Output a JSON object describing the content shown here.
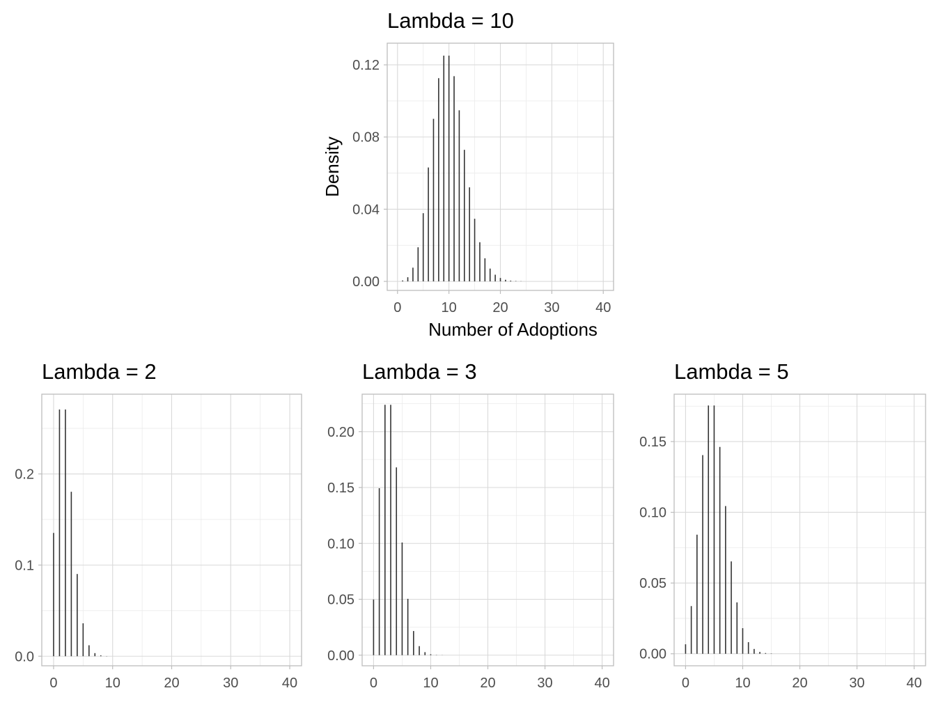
{
  "chart_data": [
    {
      "type": "bar",
      "title": "Lambda = 10",
      "xlabel": "Number of Adoptions",
      "ylabel": "Density",
      "lambda": 10,
      "xlim": [
        -2,
        42
      ],
      "ylim": [
        -0.005,
        0.132
      ],
      "xticks": [
        0,
        10,
        20,
        30,
        40
      ],
      "yticks": [
        0,
        0.04,
        0.08,
        0.12
      ],
      "ytick_labels": [
        "0.00",
        "0.04",
        "0.08",
        "0.12"
      ],
      "grid": true,
      "x": [
        0,
        1,
        2,
        3,
        4,
        5,
        6,
        7,
        8,
        9,
        10,
        11,
        12,
        13,
        14,
        15,
        16,
        17,
        18,
        19,
        20,
        21,
        22,
        23,
        24,
        25,
        26,
        27,
        28,
        29,
        30,
        31,
        32,
        33,
        34,
        35,
        36,
        37,
        38,
        39,
        40
      ],
      "values": [
        0.0,
        0.0005,
        0.0023,
        0.0076,
        0.0189,
        0.0378,
        0.0631,
        0.0901,
        0.1126,
        0.1251,
        0.1251,
        0.1137,
        0.0948,
        0.0729,
        0.0521,
        0.0347,
        0.0217,
        0.0128,
        0.0071,
        0.0037,
        0.0019,
        0.0009,
        0.0004,
        0.0002,
        0.0001,
        0,
        0,
        0,
        0,
        0,
        0,
        0,
        0,
        0,
        0,
        0,
        0,
        0,
        0,
        0,
        0
      ]
    },
    {
      "type": "bar",
      "title": "Lambda = 2",
      "xlabel": "",
      "ylabel": "",
      "lambda": 2,
      "xlim": [
        -2,
        42
      ],
      "ylim": [
        -0.0105,
        0.2875
      ],
      "xticks": [
        0,
        10,
        20,
        30,
        40
      ],
      "yticks": [
        0,
        0.1,
        0.2
      ],
      "ytick_labels": [
        "0.0",
        "0.1",
        "0.2"
      ],
      "grid": true,
      "x": [
        0,
        1,
        2,
        3,
        4,
        5,
        6,
        7,
        8,
        9,
        10,
        11,
        12,
        13,
        14,
        15,
        16,
        17,
        18,
        19,
        20,
        21,
        22,
        23,
        24,
        25,
        26,
        27,
        28,
        29,
        30,
        31,
        32,
        33,
        34,
        35,
        36,
        37,
        38,
        39,
        40
      ],
      "values": [
        0.1353,
        0.2707,
        0.2707,
        0.1804,
        0.0902,
        0.0361,
        0.012,
        0.0034,
        0.0009,
        0.0002,
        0,
        0,
        0,
        0,
        0,
        0,
        0,
        0,
        0,
        0,
        0,
        0,
        0,
        0,
        0,
        0,
        0,
        0,
        0,
        0,
        0,
        0,
        0,
        0,
        0,
        0,
        0,
        0,
        0,
        0,
        0
      ]
    },
    {
      "type": "bar",
      "title": "Lambda = 3",
      "xlabel": "",
      "ylabel": "",
      "lambda": 3,
      "xlim": [
        -2,
        42
      ],
      "ylim": [
        -0.0095,
        0.2335
      ],
      "xticks": [
        0,
        10,
        20,
        30,
        40
      ],
      "yticks": [
        0,
        0.05,
        0.1,
        0.15,
        0.2
      ],
      "ytick_labels": [
        "0.00",
        "0.05",
        "0.10",
        "0.15",
        "0.20"
      ],
      "grid": true,
      "x": [
        0,
        1,
        2,
        3,
        4,
        5,
        6,
        7,
        8,
        9,
        10,
        11,
        12,
        13,
        14,
        15,
        16,
        17,
        18,
        19,
        20,
        21,
        22,
        23,
        24,
        25,
        26,
        27,
        28,
        29,
        30,
        31,
        32,
        33,
        34,
        35,
        36,
        37,
        38,
        39,
        40
      ],
      "values": [
        0.0498,
        0.1494,
        0.224,
        0.224,
        0.168,
        0.1008,
        0.0504,
        0.0216,
        0.0081,
        0.0027,
        0.0008,
        0.0002,
        0.0001,
        0,
        0,
        0,
        0,
        0,
        0,
        0,
        0,
        0,
        0,
        0,
        0,
        0,
        0,
        0,
        0,
        0,
        0,
        0,
        0,
        0,
        0,
        0,
        0,
        0,
        0,
        0,
        0
      ]
    },
    {
      "type": "bar",
      "title": "Lambda = 5",
      "xlabel": "",
      "ylabel": "",
      "lambda": 5,
      "xlim": [
        -2,
        42
      ],
      "ylim": [
        -0.0085,
        0.1835
      ],
      "xticks": [
        0,
        10,
        20,
        30,
        40
      ],
      "yticks": [
        0,
        0.05,
        0.1,
        0.15
      ],
      "ytick_labels": [
        "0.00",
        "0.05",
        "0.10",
        "0.15"
      ],
      "grid": true,
      "x": [
        0,
        1,
        2,
        3,
        4,
        5,
        6,
        7,
        8,
        9,
        10,
        11,
        12,
        13,
        14,
        15,
        16,
        17,
        18,
        19,
        20,
        21,
        22,
        23,
        24,
        25,
        26,
        27,
        28,
        29,
        30,
        31,
        32,
        33,
        34,
        35,
        36,
        37,
        38,
        39,
        40
      ],
      "values": [
        0.0067,
        0.0337,
        0.0842,
        0.1404,
        0.1755,
        0.1755,
        0.1462,
        0.1044,
        0.0653,
        0.0363,
        0.0181,
        0.0082,
        0.0034,
        0.0013,
        0.0005,
        0.0002,
        0,
        0,
        0,
        0,
        0,
        0,
        0,
        0,
        0,
        0,
        0,
        0,
        0,
        0,
        0,
        0,
        0,
        0,
        0,
        0,
        0,
        0,
        0,
        0,
        0
      ]
    }
  ]
}
